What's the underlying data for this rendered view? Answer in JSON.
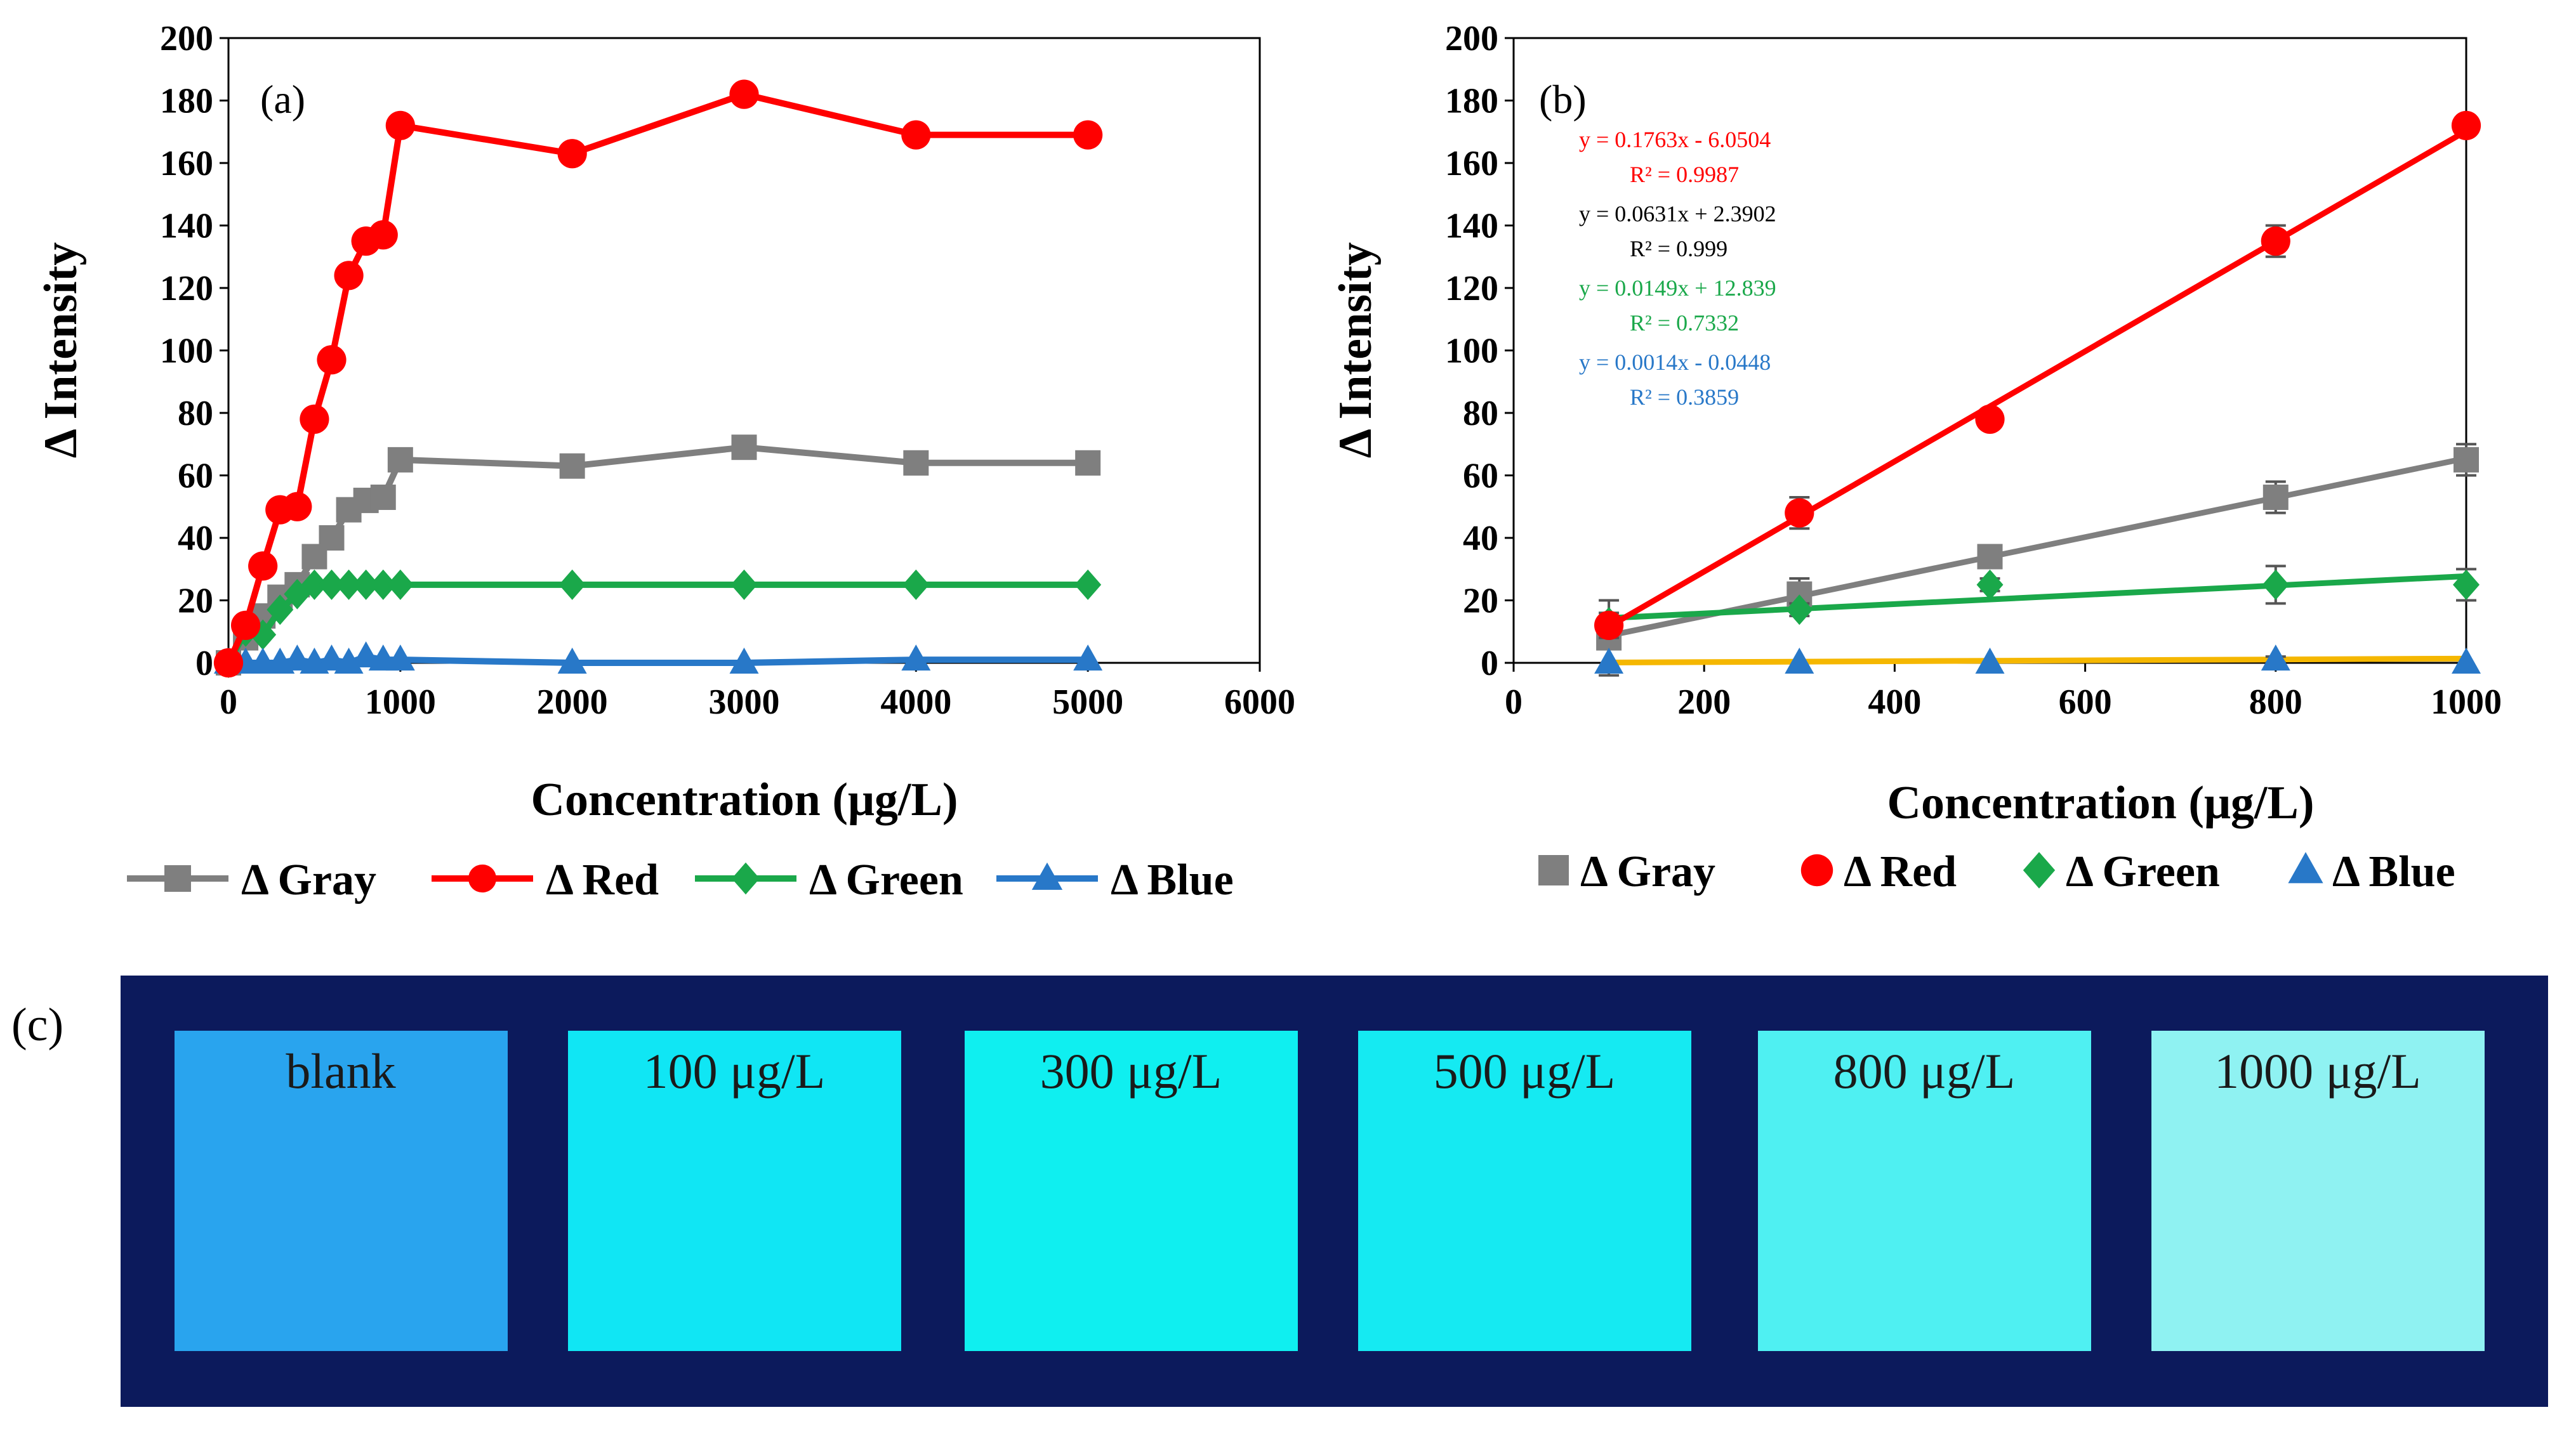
{
  "colors": {
    "gray": "#7f7f7f",
    "red": "#ff0000",
    "green": "#1aa84a",
    "blue": "#2878c8",
    "fit_blue": "#f5b700",
    "frame": "#0c1a5c"
  },
  "legend": [
    {
      "key": "gray",
      "label": "Δ Gray",
      "marker": "square"
    },
    {
      "key": "red",
      "label": "Δ Red",
      "marker": "circle"
    },
    {
      "key": "green",
      "label": "Δ Green",
      "marker": "diamond"
    },
    {
      "key": "blue",
      "label": "Δ Blue",
      "marker": "triangle"
    }
  ],
  "chart_data": [
    {
      "panel": "(a)",
      "type": "line",
      "xlabel": "Concentration (μg/L)",
      "ylabel": "Δ  Intensity",
      "xlim": [
        0,
        6000
      ],
      "ylim": [
        0,
        200
      ],
      "xticks": [
        0,
        1000,
        2000,
        3000,
        4000,
        5000,
        6000
      ],
      "yticks": [
        0,
        20,
        40,
        60,
        80,
        100,
        120,
        140,
        160,
        180,
        200
      ],
      "x": [
        0,
        100,
        200,
        300,
        400,
        500,
        600,
        700,
        800,
        900,
        1000,
        2000,
        3000,
        4000,
        5000
      ],
      "series": [
        {
          "name": "Δ Gray",
          "key": "gray",
          "marker": "square",
          "values": [
            0,
            8,
            15,
            21,
            25,
            34,
            40,
            49,
            52,
            53,
            65,
            63,
            69,
            64,
            64
          ]
        },
        {
          "name": "Δ Red",
          "key": "red",
          "marker": "circle",
          "values": [
            0,
            12,
            31,
            49,
            50,
            78,
            97,
            124,
            135,
            137,
            172,
            163,
            182,
            169,
            169
          ]
        },
        {
          "name": "Δ Green",
          "key": "green",
          "marker": "diamond",
          "values": [
            0,
            10,
            9,
            17,
            22,
            25,
            25,
            25,
            25,
            25,
            25,
            25,
            25,
            25,
            25
          ]
        },
        {
          "name": "Δ Blue",
          "key": "blue",
          "marker": "triangle",
          "values": [
            0,
            0,
            0,
            0,
            1,
            0,
            1,
            0,
            2,
            1,
            1,
            0,
            0,
            1,
            1
          ]
        }
      ],
      "legend_position": "bottom"
    },
    {
      "panel": "(b)",
      "type": "scatter",
      "xlabel": "Concentration (μg/L)",
      "ylabel": "Δ Intensity",
      "xlim": [
        0,
        1000
      ],
      "ylim": [
        0,
        200
      ],
      "xticks": [
        0,
        200,
        400,
        600,
        800,
        1000
      ],
      "yticks": [
        0,
        20,
        40,
        60,
        80,
        100,
        120,
        140,
        160,
        180,
        200
      ],
      "x": [
        100,
        300,
        500,
        800,
        1000
      ],
      "series": [
        {
          "name": "Δ Gray",
          "key": "gray",
          "marker": "square",
          "values": [
            8,
            22,
            34,
            53,
            65
          ],
          "errors": [
            12,
            5,
            3,
            5,
            5
          ],
          "fit": {
            "slope": 0.0631,
            "intercept": 2.3902,
            "equation": "y = 0.0631x + 2.3902",
            "r2": "R² = 0.999"
          }
        },
        {
          "name": "Δ Red",
          "key": "red",
          "marker": "circle",
          "values": [
            12,
            48,
            78,
            135,
            172
          ],
          "errors": [
            4,
            5,
            3,
            5,
            3
          ],
          "fit": {
            "slope": 0.1763,
            "intercept": -6.0504,
            "equation": "y = 0.1763x - 6.0504",
            "r2": "R² = 0.9987"
          }
        },
        {
          "name": "Δ Green",
          "key": "green",
          "marker": "diamond",
          "values": [
            13,
            17,
            25,
            25,
            25
          ],
          "errors": [
            2,
            2,
            2,
            6,
            5
          ],
          "fit": {
            "slope": 0.0149,
            "intercept": 12.839,
            "equation": "y = 0.0149x + 12.839",
            "r2": "R² = 0.7332"
          }
        },
        {
          "name": "Δ Blue",
          "key": "blue",
          "marker": "triangle",
          "values": [
            0,
            0,
            0,
            1,
            0
          ],
          "errors": [
            0,
            0,
            0,
            1,
            0
          ],
          "fit": {
            "slope": 0.0014,
            "intercept": -0.0448,
            "equation": "y = 0.0014x - 0.0448",
            "r2": "R² = 0.3859"
          }
        }
      ],
      "legend_position": "bottom"
    }
  ],
  "panel_c": {
    "label": "(c)",
    "samples": [
      {
        "label": "blank",
        "color": "#29a4ee"
      },
      {
        "label": "100 μg/L",
        "color": "#10e6f4"
      },
      {
        "label": "300 μg/L",
        "color": "#0feff0"
      },
      {
        "label": "500 μg/L",
        "color": "#15eaf2"
      },
      {
        "label": "800 μg/L",
        "color": "#4ff0f2"
      },
      {
        "label": "1000 μg/L",
        "color": "#8ff2f2"
      }
    ]
  }
}
